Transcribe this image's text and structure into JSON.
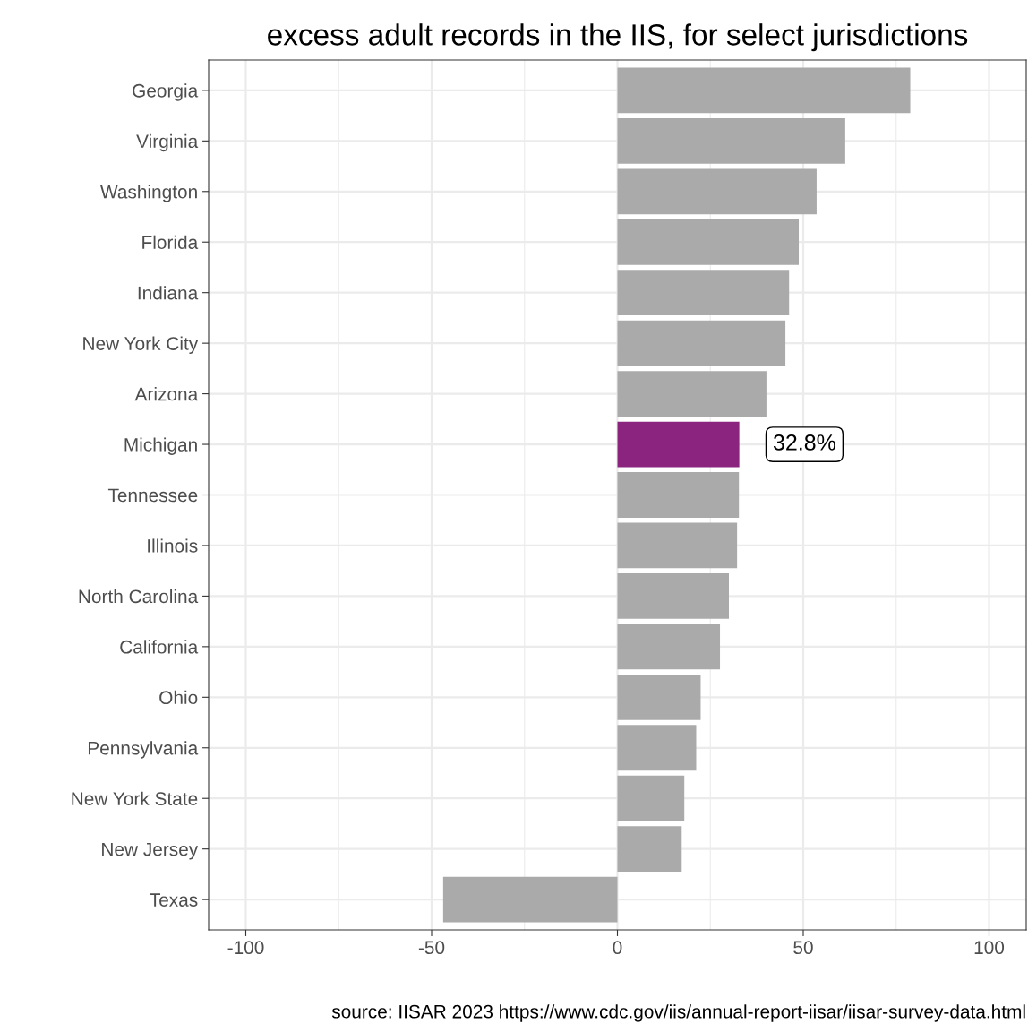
{
  "chart_data": {
    "type": "bar",
    "orientation": "horizontal",
    "title": "excess adult records in the IIS, for select jurisdictions",
    "categories": [
      "Georgia",
      "Virginia",
      "Washington",
      "Florida",
      "Indiana",
      "New York City",
      "Arizona",
      "Michigan",
      "Tennessee",
      "Illinois",
      "North Carolina",
      "California",
      "Ohio",
      "Pennsylvania",
      "New York State",
      "New Jersey",
      "Texas"
    ],
    "values": [
      78.8,
      61.3,
      53.6,
      48.8,
      46.2,
      45.2,
      40.1,
      32.8,
      32.7,
      32.2,
      30.0,
      27.6,
      22.4,
      21.2,
      18.0,
      17.3,
      -46.9
    ],
    "colors": [
      "#aaaaaa",
      "#aaaaaa",
      "#aaaaaa",
      "#aaaaaa",
      "#aaaaaa",
      "#aaaaaa",
      "#aaaaaa",
      "#8b247e",
      "#aaaaaa",
      "#aaaaaa",
      "#aaaaaa",
      "#aaaaaa",
      "#aaaaaa",
      "#aaaaaa",
      "#aaaaaa",
      "#aaaaaa",
      "#aaaaaa"
    ],
    "xlim": [
      -110,
      110
    ],
    "xticks": [
      -100,
      -50,
      0,
      50,
      100
    ],
    "grid": true,
    "value_labels": [
      null,
      null,
      null,
      null,
      null,
      null,
      null,
      "32.8%",
      null,
      null,
      null,
      null,
      null,
      null,
      null,
      null,
      null
    ],
    "annotations": [
      "source: IISAR 2023 https://www.cdc.gov/iis/annual-report-iisar/iisar-survey-data.html"
    ]
  }
}
